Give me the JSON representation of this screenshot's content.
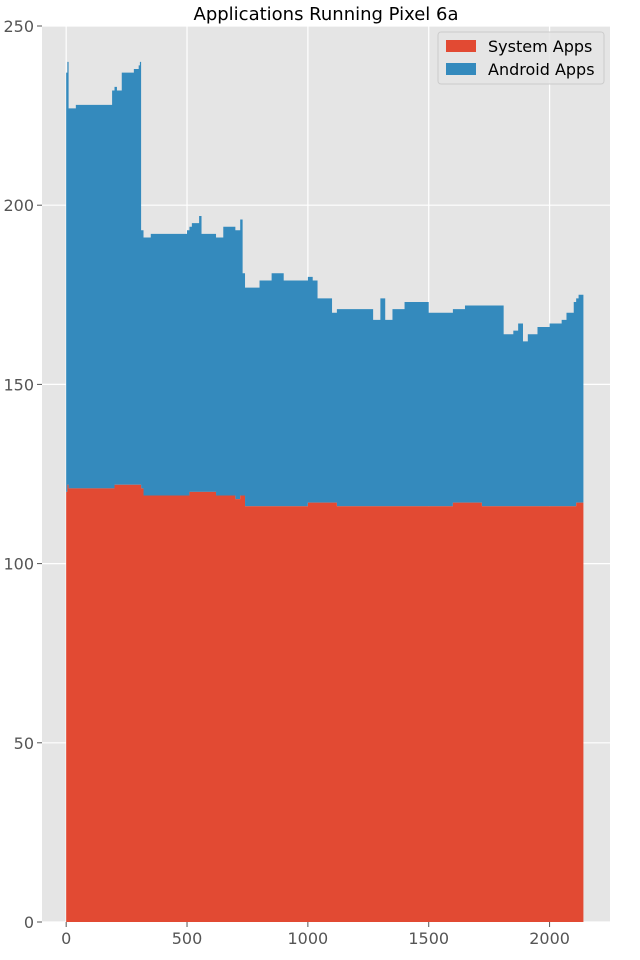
{
  "chart_data": {
    "type": "area",
    "stacked": true,
    "title": "Applications Running Pixel 6a",
    "xlabel": "",
    "ylabel": "",
    "xlim": [
      -100,
      2250
    ],
    "ylim": [
      0,
      250
    ],
    "x_ticks": [
      0,
      500,
      1000,
      1500,
      2000
    ],
    "y_ticks": [
      0,
      50,
      100,
      150,
      200,
      250
    ],
    "grid": true,
    "legend": "top-right",
    "colors": {
      "background": "#e5e5e5",
      "grid": "#ffffff"
    },
    "series": [
      {
        "name": "System Apps",
        "color": "#e24a33",
        "x": [
          0,
          5,
          10,
          190,
          200,
          310,
          320,
          500,
          510,
          600,
          620,
          700,
          720,
          740,
          900,
          960,
          1000,
          1100,
          1120,
          1500,
          1550,
          1600,
          1700,
          1720,
          2000,
          2100,
          2110,
          2140
        ],
        "values": [
          120,
          122,
          121,
          121,
          122,
          121,
          119,
          119,
          120,
          120,
          119,
          118,
          119,
          116,
          116,
          116,
          117,
          117,
          116,
          116,
          116,
          117,
          117,
          116,
          116,
          116,
          117,
          116
        ]
      },
      {
        "name": "Android Apps",
        "color": "#348abd",
        "x": [
          0,
          5,
          10,
          20,
          40,
          180,
          190,
          210,
          230,
          280,
          300,
          305,
          310,
          320,
          350,
          400,
          500,
          520,
          550,
          560,
          600,
          620,
          650,
          700,
          720,
          730,
          740,
          760,
          800,
          850,
          900,
          950,
          980,
          1000,
          1020,
          1040,
          1060,
          1100,
          1120,
          1150,
          1200,
          1250,
          1270,
          1300,
          1320,
          1350,
          1400,
          1450,
          1500,
          1550,
          1600,
          1650,
          1700,
          1720,
          1750,
          1800,
          1810,
          1850,
          1870,
          1890,
          1910,
          1950,
          2000,
          2050,
          2070,
          2100,
          2120,
          2140
        ],
        "values": [
          117,
          118,
          106,
          106,
          107,
          107,
          111,
          110,
          115,
          116,
          117,
          118,
          72,
          72,
          73,
          73,
          74,
          75,
          77,
          72,
          72,
          72,
          75,
          75,
          77,
          62,
          61,
          61,
          63,
          65,
          63,
          63,
          63,
          63,
          62,
          57,
          57,
          53,
          55,
          55,
          55,
          55,
          52,
          58,
          52,
          55,
          57,
          57,
          54,
          54,
          54,
          55,
          55,
          56,
          56,
          56,
          48,
          49,
          51,
          46,
          48,
          50,
          51,
          52,
          54,
          57,
          58,
          52
        ]
      }
    ]
  }
}
